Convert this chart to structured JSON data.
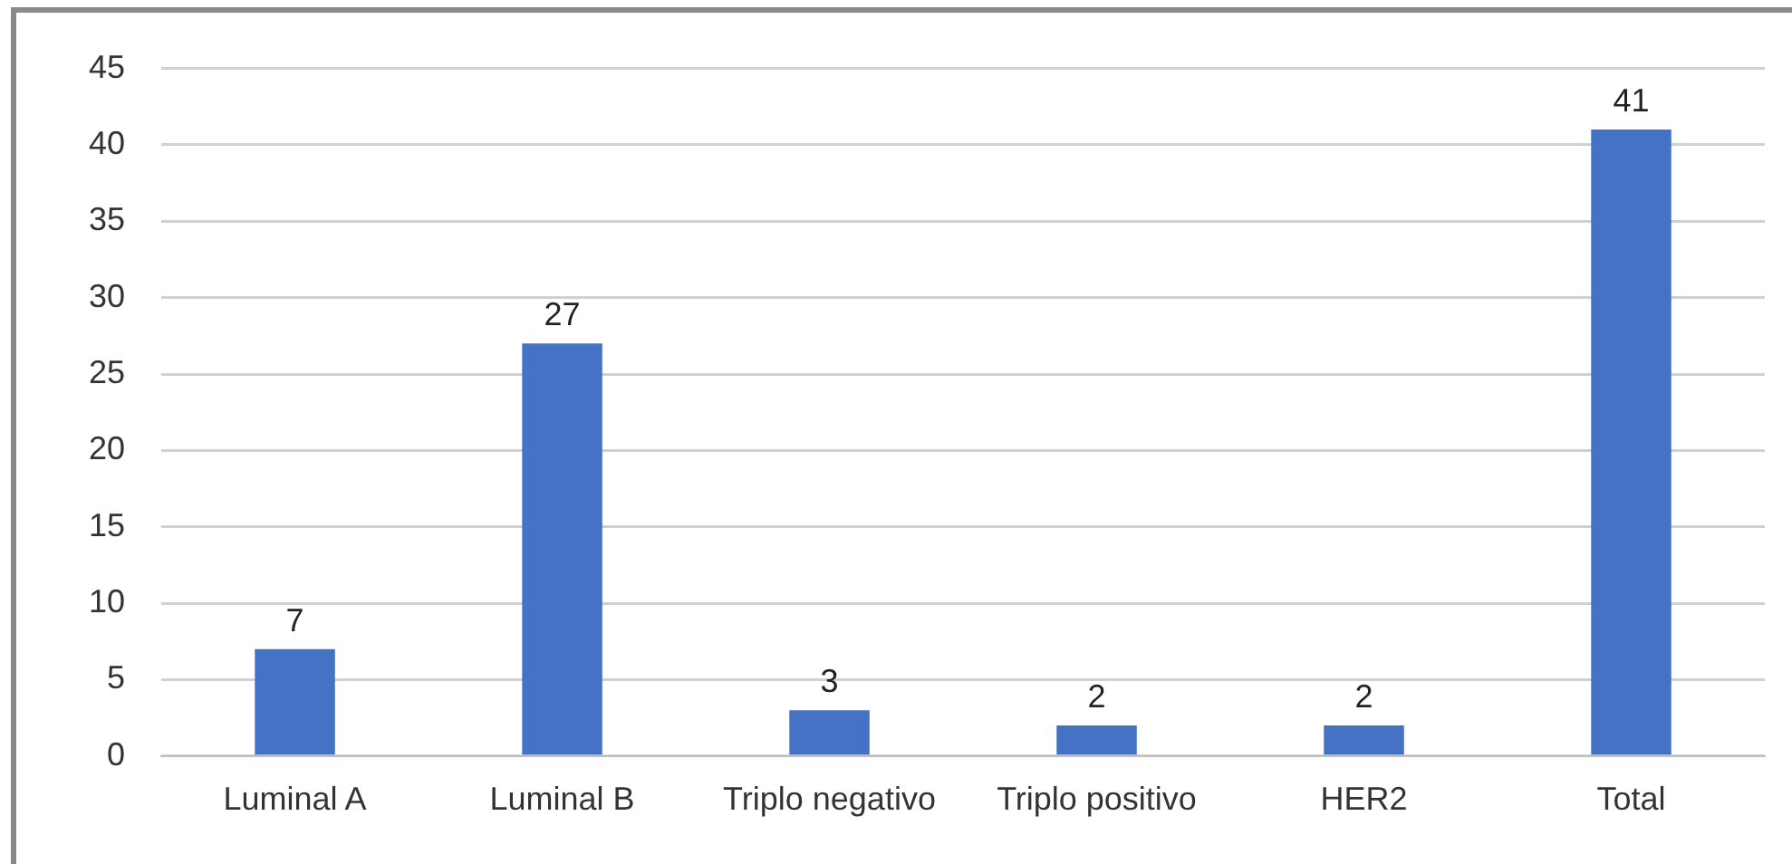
{
  "chart_data": {
    "type": "bar",
    "categories": [
      "Luminal A",
      "Luminal B",
      "Triplo negativo",
      "Triplo positivo",
      "HER2",
      "Total"
    ],
    "values": [
      7,
      27,
      3,
      2,
      2,
      41
    ],
    "color": "#4472c4",
    "ylim": [
      0,
      45
    ],
    "yticks": [
      0,
      5,
      10,
      15,
      20,
      25,
      30,
      35,
      40,
      45
    ],
    "grid": "y",
    "data_labels": true
  }
}
